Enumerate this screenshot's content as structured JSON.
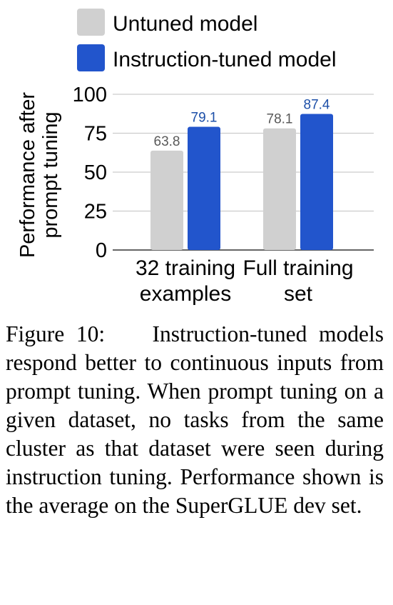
{
  "chart_data": {
    "type": "bar",
    "categories": [
      "32 training examples",
      "Full training set"
    ],
    "category_lines": [
      [
        "32 training",
        "examples"
      ],
      [
        "Full training",
        "set"
      ]
    ],
    "series": [
      {
        "name": "Untuned model",
        "values": [
          63.8,
          78.1
        ],
        "color": "#d0d0d0",
        "label_color": "#595959"
      },
      {
        "name": "Instruction-tuned model",
        "values": [
          79.1,
          87.4
        ],
        "color": "#2255cc",
        "label_color": "#1c4fa8"
      }
    ],
    "data_labels": [
      [
        "63.8",
        "78.1"
      ],
      [
        "79.1",
        "87.4"
      ]
    ],
    "ylabel_lines": [
      "Performance after",
      "prompt tuning"
    ],
    "ylim": [
      0,
      100
    ],
    "yticks": [
      0,
      25,
      50,
      75,
      100
    ],
    "grid": true,
    "grid_color": "#cccccc",
    "legend_position": "top"
  },
  "caption": {
    "figure_number": "Figure 10:",
    "text": "Instruction-tuned models respond better to contin­uous inputs from prompt tuning. When prompt tuning on a given dataset, no tasks from the same cluster as that dataset were seen during instruction tuning. Perfor­mance shown is the average on the SuperGLUE dev set."
  }
}
